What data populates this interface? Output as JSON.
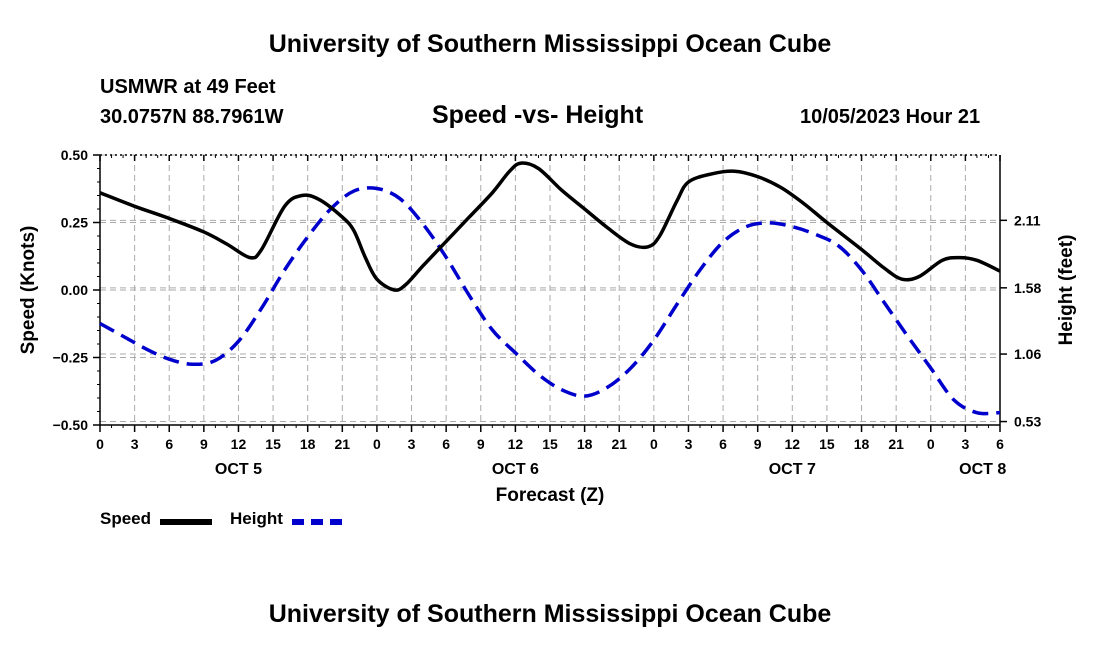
{
  "page": {
    "title_top": "University of Southern Mississippi Ocean Cube",
    "title_bottom": "University of Southern Mississippi Ocean Cube",
    "station": "USMWR at 49 Feet",
    "coords": "30.0757N  88.7961W",
    "datetime": "10/05/2023 Hour 21"
  },
  "chart_data": {
    "type": "line",
    "title": "Speed -vs- Height",
    "xlabel": "Forecast (Z)",
    "ylabel_left": "Speed (Knots)",
    "ylabel_right": "Height (feet)",
    "x_range_hours": [
      0,
      78
    ],
    "x_ticks": [
      {
        "h": 0,
        "label": "0"
      },
      {
        "h": 3,
        "label": "3"
      },
      {
        "h": 6,
        "label": "6"
      },
      {
        "h": 9,
        "label": "9"
      },
      {
        "h": 12,
        "label": "12"
      },
      {
        "h": 15,
        "label": "15"
      },
      {
        "h": 18,
        "label": "18"
      },
      {
        "h": 21,
        "label": "21"
      },
      {
        "h": 24,
        "label": "0"
      },
      {
        "h": 27,
        "label": "3"
      },
      {
        "h": 30,
        "label": "6"
      },
      {
        "h": 33,
        "label": "9"
      },
      {
        "h": 36,
        "label": "12"
      },
      {
        "h": 39,
        "label": "15"
      },
      {
        "h": 42,
        "label": "18"
      },
      {
        "h": 45,
        "label": "21"
      },
      {
        "h": 48,
        "label": "0"
      },
      {
        "h": 51,
        "label": "3"
      },
      {
        "h": 54,
        "label": "6"
      },
      {
        "h": 57,
        "label": "9"
      },
      {
        "h": 60,
        "label": "12"
      },
      {
        "h": 63,
        "label": "15"
      },
      {
        "h": 66,
        "label": "18"
      },
      {
        "h": 69,
        "label": "21"
      },
      {
        "h": 72,
        "label": "0"
      },
      {
        "h": 75,
        "label": "3"
      },
      {
        "h": 78,
        "label": "6"
      }
    ],
    "day_labels": [
      {
        "h": 12,
        "label": "OCT 5"
      },
      {
        "h": 36,
        "label": "OCT 6"
      },
      {
        "h": 60,
        "label": "OCT 7"
      },
      {
        "h": 76.5,
        "label": "OCT 8"
      }
    ],
    "y_left": {
      "min": -0.5,
      "max": 0.5,
      "ticks": [
        0.5,
        0.25,
        0.0,
        -0.25,
        -0.5
      ],
      "tick_labels": [
        "0.50",
        "0.25",
        "0.00",
        "−0.25",
        "−0.50"
      ]
    },
    "y_right": {
      "min": 0.503,
      "max": 2.623,
      "ticks": [
        2.11,
        1.58,
        1.06,
        0.53
      ],
      "tick_labels": [
        "2.11",
        "1.58",
        "1.06",
        "0.53"
      ]
    },
    "series": [
      {
        "name": "Speed",
        "axis": "left",
        "color": "#000000",
        "style": "solid",
        "points": [
          [
            0,
            0.36
          ],
          [
            3,
            0.31
          ],
          [
            6,
            0.265
          ],
          [
            9,
            0.215
          ],
          [
            11,
            0.17
          ],
          [
            13,
            0.12
          ],
          [
            14,
            0.15
          ],
          [
            16,
            0.31
          ],
          [
            17.5,
            0.35
          ],
          [
            19,
            0.335
          ],
          [
            21,
            0.27
          ],
          [
            22,
            0.22
          ],
          [
            23,
            0.12
          ],
          [
            24,
            0.04
          ],
          [
            25.5,
            0.0
          ],
          [
            26.5,
            0.02
          ],
          [
            28,
            0.09
          ],
          [
            30,
            0.18
          ],
          [
            32,
            0.27
          ],
          [
            34,
            0.36
          ],
          [
            35.5,
            0.44
          ],
          [
            36.5,
            0.47
          ],
          [
            38,
            0.45
          ],
          [
            40,
            0.37
          ],
          [
            42,
            0.3
          ],
          [
            44,
            0.23
          ],
          [
            46,
            0.17
          ],
          [
            47.5,
            0.16
          ],
          [
            48.5,
            0.2
          ],
          [
            50,
            0.33
          ],
          [
            51,
            0.4
          ],
          [
            53,
            0.43
          ],
          [
            55,
            0.44
          ],
          [
            57,
            0.42
          ],
          [
            59,
            0.38
          ],
          [
            61,
            0.32
          ],
          [
            63,
            0.25
          ],
          [
            66,
            0.15
          ],
          [
            68,
            0.08
          ],
          [
            69.5,
            0.04
          ],
          [
            71,
            0.05
          ],
          [
            73,
            0.11
          ],
          [
            74.5,
            0.12
          ],
          [
            76,
            0.11
          ],
          [
            78,
            0.07
          ]
        ]
      },
      {
        "name": "Height",
        "axis": "right",
        "color": "#0000cc",
        "style": "dashed",
        "points": [
          [
            0,
            1.3
          ],
          [
            2,
            1.2
          ],
          [
            4,
            1.1
          ],
          [
            6,
            1.02
          ],
          [
            8,
            0.98
          ],
          [
            10,
            1.01
          ],
          [
            12,
            1.16
          ],
          [
            14,
            1.42
          ],
          [
            16,
            1.72
          ],
          [
            18,
            1.98
          ],
          [
            20,
            2.2
          ],
          [
            22,
            2.34
          ],
          [
            24,
            2.36
          ],
          [
            26,
            2.28
          ],
          [
            28,
            2.08
          ],
          [
            30,
            1.82
          ],
          [
            32,
            1.52
          ],
          [
            34,
            1.25
          ],
          [
            36,
            1.07
          ],
          [
            38,
            0.9
          ],
          [
            40,
            0.78
          ],
          [
            42,
            0.73
          ],
          [
            44,
            0.8
          ],
          [
            46,
            0.95
          ],
          [
            48,
            1.17
          ],
          [
            50,
            1.45
          ],
          [
            52,
            1.72
          ],
          [
            54,
            1.94
          ],
          [
            56,
            2.06
          ],
          [
            58,
            2.09
          ],
          [
            60,
            2.06
          ],
          [
            62,
            2.0
          ],
          [
            64,
            1.91
          ],
          [
            66,
            1.72
          ],
          [
            68,
            1.46
          ],
          [
            70,
            1.2
          ],
          [
            72,
            0.95
          ],
          [
            74,
            0.7
          ],
          [
            76,
            0.6
          ],
          [
            78,
            0.6
          ]
        ]
      }
    ],
    "legend": [
      {
        "label": "Speed",
        "color": "#000000",
        "style": "solid"
      },
      {
        "label": "Height",
        "color": "#0000cc",
        "style": "dashed"
      }
    ],
    "grid": true
  }
}
